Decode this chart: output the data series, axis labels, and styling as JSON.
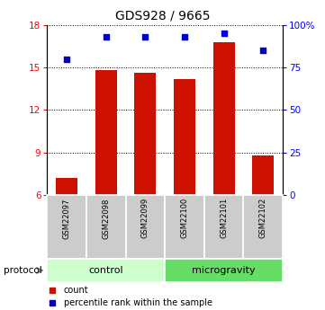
{
  "title": "GDS928 / 9665",
  "samples": [
    "GSM22097",
    "GSM22098",
    "GSM22099",
    "GSM22100",
    "GSM22101",
    "GSM22102"
  ],
  "bar_values": [
    7.2,
    14.8,
    14.6,
    14.2,
    16.8,
    8.8
  ],
  "percentile_values": [
    80,
    93,
    93,
    93,
    95,
    85
  ],
  "bar_color": "#cc1100",
  "percentile_color": "#0000cc",
  "ylim_left": [
    6,
    18
  ],
  "ylim_right": [
    0,
    100
  ],
  "yticks_left": [
    6,
    9,
    12,
    15,
    18
  ],
  "yticks_right": [
    0,
    25,
    50,
    75,
    100
  ],
  "ytick_labels_right": [
    "0",
    "25",
    "50",
    "75",
    "100%"
  ],
  "groups": [
    {
      "label": "control",
      "indices": [
        0,
        1,
        2
      ],
      "color": "#ccffcc"
    },
    {
      "label": "microgravity",
      "indices": [
        3,
        4,
        5
      ],
      "color": "#66dd66"
    }
  ],
  "protocol_label": "protocol",
  "legend_count_label": "count",
  "legend_percentile_label": "percentile rank within the sample",
  "bar_width": 0.55,
  "title_fontsize": 10,
  "tick_fontsize": 7.5,
  "sample_fontsize": 6,
  "group_fontsize": 8,
  "legend_fontsize": 7
}
